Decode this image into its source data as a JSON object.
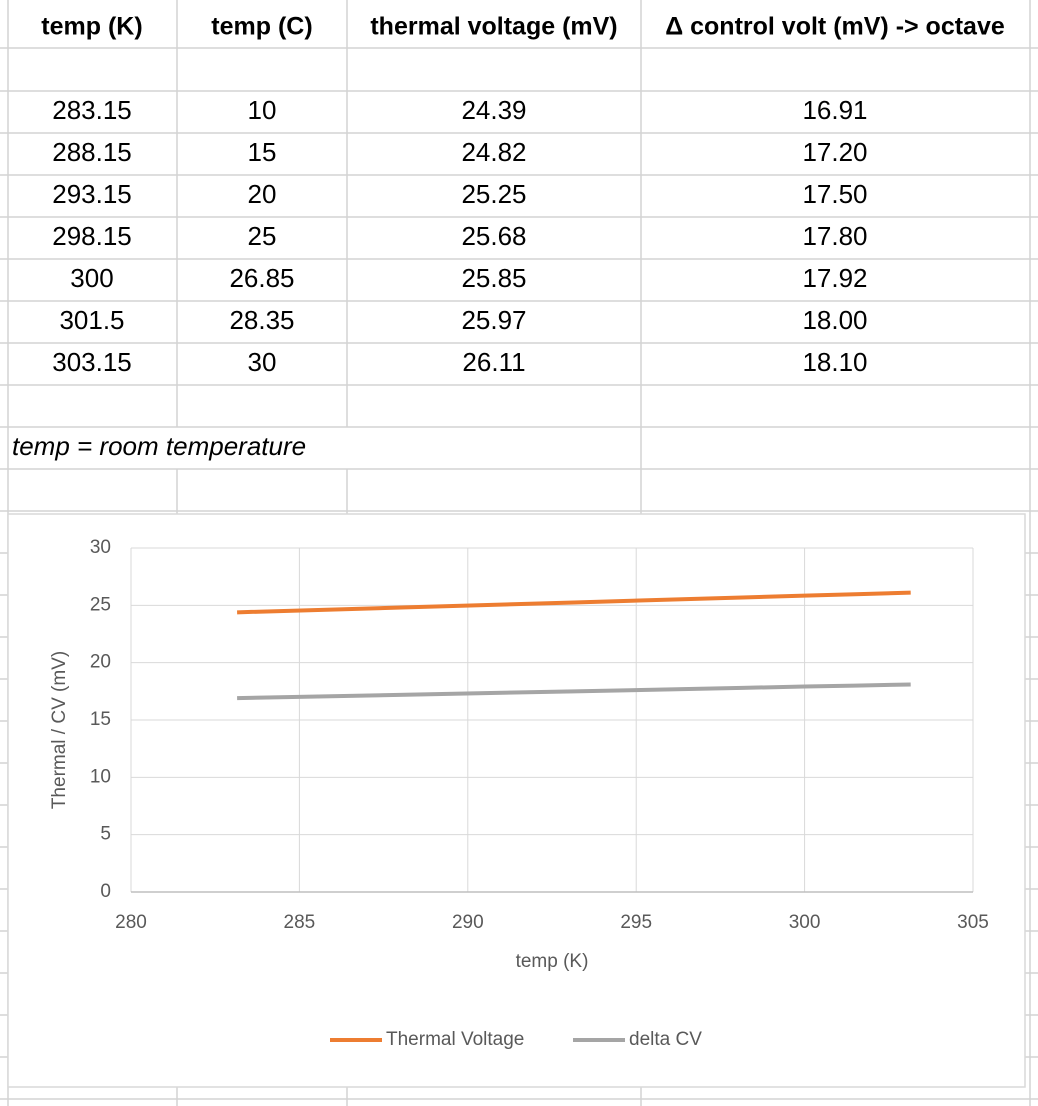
{
  "table": {
    "headers": [
      "temp (K)",
      "temp (C)",
      "thermal voltage (mV)",
      "Δ control volt (mV) -> octave"
    ],
    "rows": [
      [
        "283.15",
        "10",
        "24.39",
        "16.91"
      ],
      [
        "288.15",
        "15",
        "24.82",
        "17.20"
      ],
      [
        "293.15",
        "20",
        "25.25",
        "17.50"
      ],
      [
        "298.15",
        "25",
        "25.68",
        "17.80"
      ],
      [
        "300",
        "26.85",
        "25.85",
        "17.92"
      ],
      [
        "301.5",
        "28.35",
        "25.97",
        "18.00"
      ],
      [
        "303.15",
        "30",
        "26.11",
        "18.10"
      ]
    ],
    "note": "temp = room temperature"
  },
  "chart_data": {
    "type": "line",
    "x": [
      283.15,
      288.15,
      293.15,
      298.15,
      300,
      301.5,
      303.15
    ],
    "series": [
      {
        "name": "Thermal Voltage",
        "color": "#ed7d31",
        "values": [
          24.39,
          24.82,
          25.25,
          25.68,
          25.85,
          25.97,
          26.11
        ]
      },
      {
        "name": "delta CV",
        "color": "#a5a5a5",
        "values": [
          16.91,
          17.2,
          17.5,
          17.8,
          17.92,
          18.0,
          18.1
        ]
      }
    ],
    "xlabel": "temp (K)",
    "ylabel": "Thermal / CV (mV)",
    "xlim": [
      280,
      305
    ],
    "xticks": [
      280,
      285,
      290,
      295,
      300,
      305
    ],
    "ylim": [
      0,
      30
    ],
    "yticks": [
      0,
      5,
      10,
      15,
      20,
      25,
      30
    ],
    "grid": true,
    "legend": "bottom"
  }
}
